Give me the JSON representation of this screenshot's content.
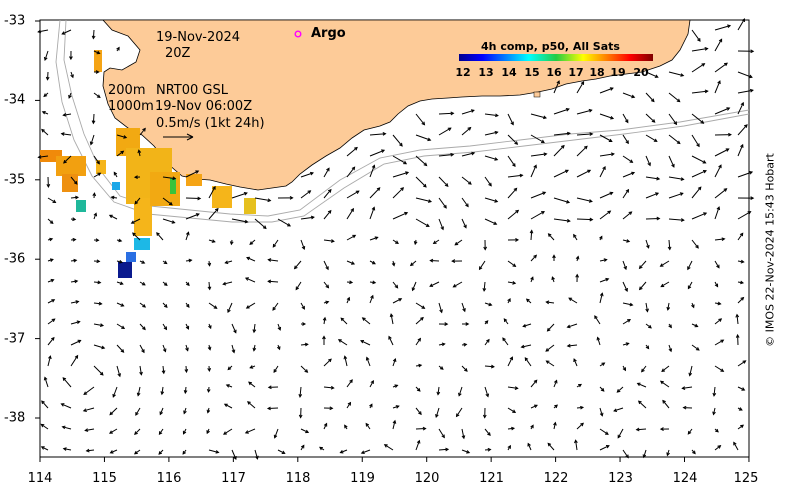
{
  "map": {
    "date_line": "19-Nov-2024",
    "time_line": "20Z",
    "isobath_shallow": "200m",
    "isobath_deep": "1000m",
    "product": "NRT00 GSL",
    "product_time": "19-Nov 06:00Z",
    "scale_label": "0.5m/s (1kt 24h)",
    "argo_label": "Argo",
    "colorbar_title": "4h comp, p50, All Sats",
    "colorbar_ticks": [
      "12",
      "13",
      "14",
      "15",
      "16",
      "17",
      "18",
      "19",
      "20"
    ],
    "copyright": "© IMOS 22-Nov-2024 15:43 Hobart",
    "x_ticks": [
      "114",
      "115",
      "116",
      "117",
      "118",
      "119",
      "120",
      "121",
      "122",
      "123",
      "124",
      "125"
    ],
    "y_ticks": [
      "-33",
      "-34",
      "-35",
      "-36",
      "-37",
      "-38"
    ],
    "colors": {
      "land": "#FDCB98",
      "argo": "#FF00FF"
    }
  }
}
